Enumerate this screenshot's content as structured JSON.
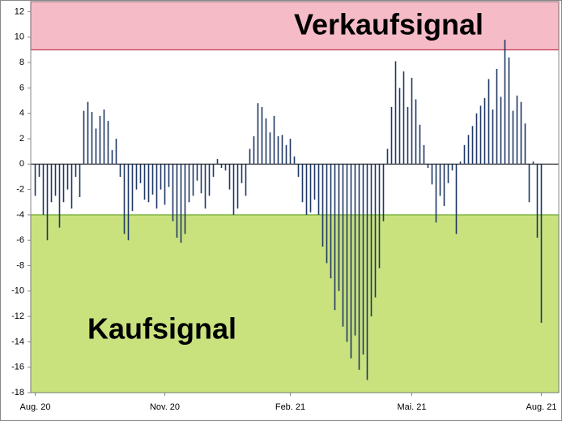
{
  "chart_data": {
    "type": "bar",
    "categories": [
      "Aug. 20",
      null,
      null,
      null,
      null,
      null,
      null,
      null,
      null,
      null,
      null,
      null,
      null,
      null,
      null,
      null,
      null,
      null,
      null,
      null,
      null,
      null,
      null,
      null,
      null,
      null,
      null,
      null,
      null,
      null,
      null,
      null,
      "Nov. 20",
      null,
      null,
      null,
      null,
      null,
      null,
      null,
      null,
      null,
      null,
      null,
      null,
      null,
      null,
      null,
      null,
      null,
      null,
      null,
      null,
      null,
      null,
      null,
      null,
      null,
      null,
      null,
      null,
      null,
      null,
      "Feb. 21",
      null,
      null,
      null,
      null,
      null,
      null,
      null,
      null,
      null,
      null,
      null,
      null,
      null,
      null,
      null,
      null,
      null,
      null,
      null,
      null,
      null,
      null,
      null,
      null,
      null,
      null,
      null,
      null,
      null,
      "Mai. 21",
      null,
      null,
      null,
      null,
      null,
      null,
      null,
      null,
      null,
      null,
      null,
      null,
      null,
      null,
      null,
      null,
      null,
      null,
      null,
      null,
      null,
      null,
      null,
      null,
      null,
      null,
      null,
      null,
      null,
      null,
      null,
      "Aug. 21"
    ],
    "values": [
      -2.5,
      -1,
      -4,
      -6,
      -3,
      -2.5,
      -5,
      -3,
      -2,
      -3.5,
      -1,
      -2.6,
      4.2,
      4.9,
      4.1,
      2.8,
      3.8,
      4.3,
      3.4,
      1.1,
      2.0,
      -1,
      -5.5,
      -6,
      -3.7,
      -2,
      -1.5,
      -2.8,
      -3,
      -2.4,
      -3.5,
      -2,
      -3.2,
      -1.8,
      -4.5,
      -5.8,
      -6.2,
      -5.5,
      -3,
      -2.5,
      -1.3,
      -2.3,
      -3.5,
      -2.5,
      -1,
      0.4,
      -0.3,
      -0.5,
      -2,
      -4,
      -3.5,
      -1.5,
      -2.5,
      1.2,
      2.2,
      4.8,
      4.5,
      3.6,
      2.5,
      3.8,
      2.2,
      2.3,
      1.5,
      2.0,
      0.6,
      -1,
      -3,
      -4,
      -3.8,
      -2.8,
      -4,
      -6.5,
      -7.8,
      -9,
      -11.5,
      -10,
      -12.8,
      -14,
      -15.3,
      -13.5,
      -16.2,
      -15,
      -17,
      -12,
      -10.5,
      -8.2,
      -4.5,
      1.2,
      4.5,
      8.1,
      6,
      7.3,
      4.5,
      6.8,
      5.1,
      3.1,
      1.5,
      -0.3,
      -1.6,
      -4.6,
      -2.5,
      -3.3,
      -1.5,
      -0.5,
      -5.5,
      0.2,
      1.5,
      2.3,
      3,
      4,
      4.6,
      5.2,
      6.7,
      4.3,
      7.5,
      5.3,
      9.8,
      8.4,
      4.2,
      5.4,
      4.9,
      3.2,
      -3,
      0.2,
      -5.8,
      -12.5
    ],
    "color": "#1f3864",
    "ylim": [
      -18,
      12.8
    ],
    "yticks": [
      -18,
      -16,
      -14,
      -12,
      -10,
      -8,
      -6,
      -4,
      -2,
      0,
      2,
      4,
      6,
      8,
      10,
      12
    ],
    "zones": [
      {
        "label": "Verkaufsignal",
        "from": 9,
        "to": 12.8,
        "color": "#f5bcc8",
        "border": "#c0304a"
      },
      {
        "label": "Kaufsignal",
        "from": -18,
        "to": -4,
        "color": "#c9e27e",
        "border": "#6aaa2a"
      }
    ]
  }
}
